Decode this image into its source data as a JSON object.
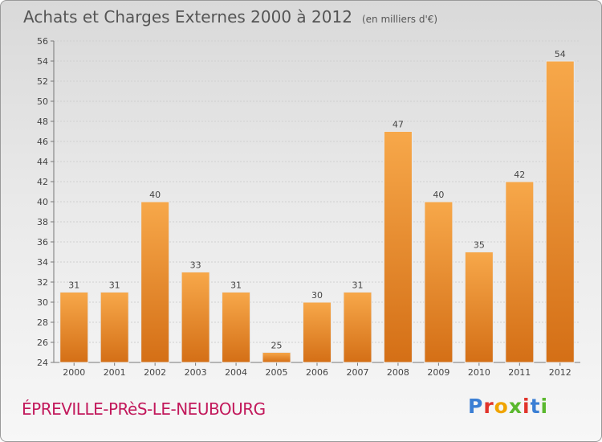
{
  "header": {
    "title": "Achats et Charges Externes 2000 à 2012",
    "unit": "(en milliers d'€)"
  },
  "footer": {
    "place": "ÉPREVILLE-PRèS-LE-NEUBOURG",
    "logo": [
      "P",
      "r",
      "o",
      "x",
      "i",
      "t",
      "i"
    ]
  },
  "colors": {
    "bar_light": "#f7a84a",
    "bar_dark": "#d46f16",
    "logo": [
      "#3b7fd4",
      "#e1342b",
      "#f0a400",
      "#5ab82e",
      "#e1342b",
      "#3b7fd4",
      "#5ab82e"
    ]
  },
  "chart_data": {
    "type": "bar",
    "title": "Achats et Charges Externes 2000 à 2012",
    "subtitle": "(en milliers d'€)",
    "xlabel": "",
    "ylabel": "",
    "categories": [
      "2000",
      "2001",
      "2002",
      "2003",
      "2004",
      "2005",
      "2006",
      "2007",
      "2008",
      "2009",
      "2010",
      "2011",
      "2012"
    ],
    "values": [
      31,
      31,
      40,
      33,
      31,
      25,
      30,
      31,
      47,
      40,
      35,
      42,
      54
    ],
    "ylim": [
      24,
      56
    ],
    "yticks": [
      24,
      26,
      28,
      30,
      32,
      34,
      36,
      38,
      40,
      42,
      44,
      46,
      48,
      50,
      52,
      54,
      56
    ],
    "grid": true,
    "legend": "none"
  }
}
